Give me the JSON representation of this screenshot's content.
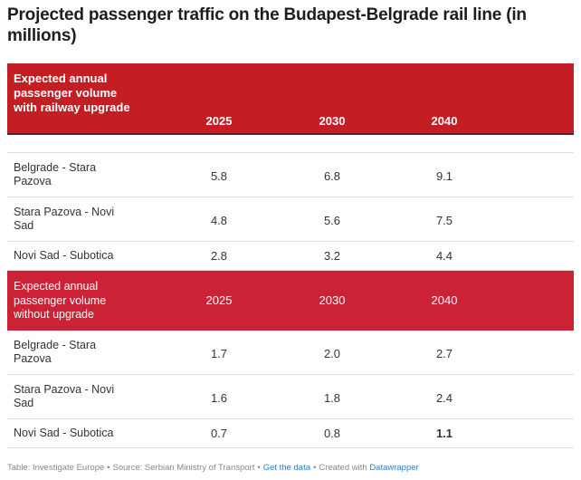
{
  "title": "Projected passenger traffic on the Budapest-Belgrade rail line (in millions)",
  "chart_data": {
    "type": "table",
    "title": "Projected passenger traffic on the Budapest-Belgrade rail line (in millions)",
    "header_color": "#c41e24",
    "subheader_color": "#cb2236",
    "columns": [
      "2025",
      "2030",
      "2040"
    ],
    "groups": [
      {
        "label": "Expected annual passenger volume with railway upgrade",
        "rows": [
          {
            "name": "Belgrade - Stara Pazova",
            "values": [
              "5.8",
              "6.8",
              "9.1"
            ]
          },
          {
            "name": "Stara Pazova - Novi Sad",
            "values": [
              "4.8",
              "5.6",
              "7.5"
            ]
          },
          {
            "name": "Novi Sad - Subotica",
            "values": [
              "2.8",
              "3.2",
              "4.4"
            ]
          }
        ]
      },
      {
        "label": "Expected annual passenger volume without upgrade",
        "rows": [
          {
            "name": "Belgrade - Stara Pazova",
            "values": [
              "1.7",
              "2.0",
              "2.7"
            ]
          },
          {
            "name": "Stara Pazova - Novi Sad",
            "values": [
              "1.6",
              "1.8",
              "2.4"
            ]
          },
          {
            "name": "Novi Sad - Subotica",
            "values": [
              "0.7",
              "0.8",
              "1.1"
            ]
          }
        ]
      }
    ]
  },
  "footer": {
    "table_by": "Table: Investigate Europe",
    "source": "Source: Serbian Ministry of Transport",
    "get_data": "Get the data",
    "created_with": "Created with",
    "datawrapper": "Datawrapper",
    "separator": "•"
  }
}
